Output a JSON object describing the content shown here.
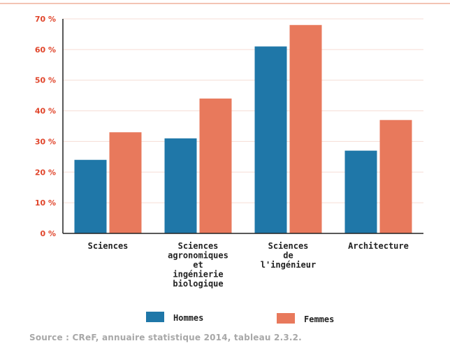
{
  "chart_data": {
    "type": "bar",
    "categories": [
      [
        "Sciences"
      ],
      [
        "Sciences",
        "agronomiques",
        "et",
        "ingénierie",
        "biologique"
      ],
      [
        "Sciences",
        "de",
        "l'ingénieur"
      ],
      [
        "Architecture"
      ]
    ],
    "series": [
      {
        "name": "Hommes",
        "values": [
          24,
          31,
          61,
          27
        ],
        "color": "#1f77a8"
      },
      {
        "name": "Femmes",
        "values": [
          33,
          44,
          68,
          37
        ],
        "color": "#e8795c"
      }
    ],
    "ylim": [
      0,
      70
    ],
    "y_ticks": [
      "0 %",
      "10 %",
      "20 %",
      "30 %",
      "40 %",
      "50 %",
      "60 %",
      "70 %"
    ],
    "y_tick_values": [
      0,
      10,
      20,
      30,
      40,
      50,
      60,
      70
    ],
    "grid": true,
    "legend_position": "bottom-center",
    "tick_color": "#e0442a",
    "grid_color": "#f6ddd5"
  },
  "source": "Source : CReF, annuaire statistique 2014, tableau 2.3.2."
}
